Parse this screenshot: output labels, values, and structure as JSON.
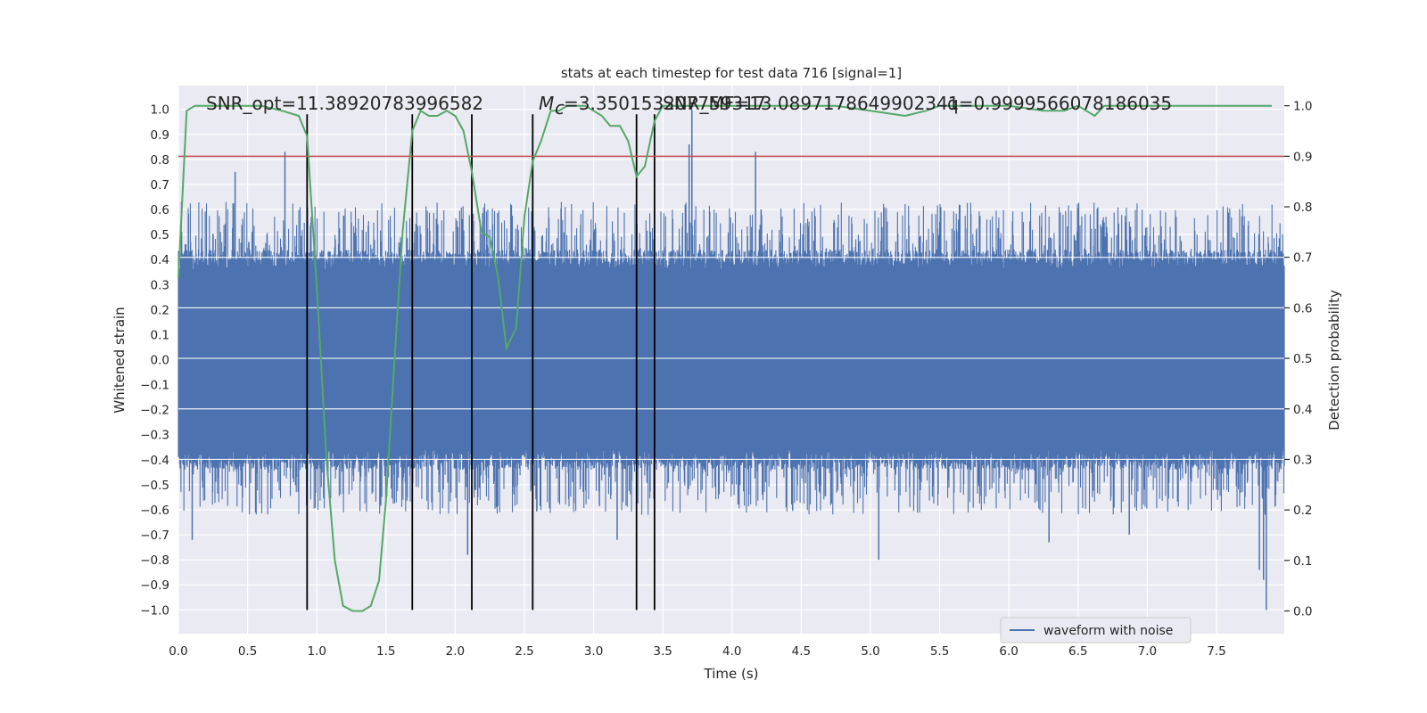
{
  "chart_data": {
    "type": "line",
    "title": "stats at each timestep for test data 716 [signal=1]",
    "xlabel": "Time (s)",
    "ylabel": "Whitened strain",
    "y2label": "Detection probability",
    "xlim": [
      0.0,
      7.99
    ],
    "ylim": [
      -1.095,
      1.095
    ],
    "y2lim": [
      -0.045,
      1.04
    ],
    "xticks": [
      "0.0",
      "0.5",
      "1.0",
      "1.5",
      "2.0",
      "2.5",
      "3.0",
      "3.5",
      "4.0",
      "4.5",
      "5.0",
      "5.5",
      "6.0",
      "6.5",
      "7.0",
      "7.5"
    ],
    "yticks": [
      "1.0",
      "0.9",
      "0.8",
      "0.7",
      "0.6",
      "0.5",
      "0.4",
      "0.3",
      "0.2",
      "0.1",
      "0.0",
      "-0.1",
      "-0.2",
      "-0.3",
      "-0.4",
      "-0.5",
      "-0.6",
      "-0.7",
      "-0.8",
      "-0.9",
      "-1.0"
    ],
    "y2ticks": [
      "1.0",
      "0.9",
      "0.8",
      "0.7",
      "0.6",
      "0.5",
      "0.4",
      "0.3",
      "0.2",
      "0.1",
      "0.0"
    ],
    "grid": true,
    "legend": {
      "position": "lower-right",
      "entries": [
        "waveform with noise"
      ]
    },
    "annotations": {
      "snr_opt": "SNR_opt=11.38920783996582",
      "mc": "=3.350153207759317",
      "mc_symbol": "M",
      "mc_sub": "c",
      "snr_mf": "SNR_MF=13.0897178649902341",
      "q": "q=0.9999566078186035"
    },
    "threshold": {
      "axis": "right",
      "value": 0.9,
      "color": "#c44e52"
    },
    "vlines": {
      "x": [
        0.93,
        1.69,
        2.12,
        2.56,
        3.31,
        3.44
      ],
      "ymin": -1.0,
      "ymax": 0.98,
      "color": "#000000"
    },
    "series": [
      {
        "name": "waveform with noise",
        "axis": "left",
        "color": "#4c72b0",
        "style": "noise",
        "envelope": {
          "typical": 0.36,
          "peak_max": 0.63,
          "trough_min": -0.62
        },
        "spikes": [
          [
            0.41,
            0.75
          ],
          [
            0.77,
            0.83
          ],
          [
            3.71,
            1.0
          ],
          [
            3.69,
            0.86
          ],
          [
            4.17,
            0.83
          ],
          [
            4.21,
            0.6
          ],
          [
            7.86,
            -1.0
          ],
          [
            7.81,
            -0.84
          ],
          [
            7.84,
            -0.88
          ],
          [
            2.09,
            -0.78
          ],
          [
            3.17,
            -0.72
          ],
          [
            0.1,
            -0.72
          ],
          [
            5.06,
            -0.8
          ],
          [
            6.29,
            -0.73
          ],
          [
            6.87,
            -0.7
          ]
        ]
      },
      {
        "name": "detection probability",
        "axis": "right",
        "color": "#55a868",
        "x": [
          0.0,
          0.06,
          0.12,
          0.2,
          0.4,
          0.6,
          0.75,
          0.87,
          0.93,
          1.0,
          1.07,
          1.13,
          1.19,
          1.26,
          1.33,
          1.39,
          1.45,
          1.5,
          1.56,
          1.62,
          1.69,
          1.75,
          1.81,
          1.87,
          1.94,
          2.0,
          2.06,
          2.12,
          2.19,
          2.25,
          2.31,
          2.37,
          2.44,
          2.5,
          2.56,
          2.62,
          2.69,
          2.75,
          2.81,
          2.87,
          2.94,
          3.0,
          3.06,
          3.12,
          3.19,
          3.25,
          3.31,
          3.37,
          3.44,
          3.5,
          3.56,
          3.62,
          3.69,
          3.75,
          3.81,
          3.87,
          4.0,
          4.25,
          4.5,
          4.75,
          5.0,
          5.25,
          5.4,
          5.5,
          5.75,
          6.0,
          6.25,
          6.4,
          6.5,
          6.62,
          6.69,
          6.75,
          6.87,
          7.0,
          7.25,
          7.5,
          7.75,
          7.9
        ],
        "values": [
          0.66,
          0.99,
          1.0,
          1.0,
          1.0,
          1.0,
          0.99,
          0.98,
          0.94,
          0.64,
          0.3,
          0.1,
          0.01,
          0.0,
          0.0,
          0.01,
          0.06,
          0.22,
          0.49,
          0.75,
          0.95,
          0.99,
          0.98,
          0.98,
          0.99,
          0.98,
          0.95,
          0.87,
          0.75,
          0.74,
          0.66,
          0.52,
          0.56,
          0.78,
          0.89,
          0.93,
          0.99,
          0.99,
          1.0,
          1.0,
          1.0,
          0.99,
          0.98,
          0.96,
          0.96,
          0.93,
          0.86,
          0.88,
          0.97,
          1.0,
          1.0,
          1.0,
          1.0,
          1.0,
          1.0,
          1.0,
          1.0,
          1.0,
          1.0,
          1.0,
          0.99,
          0.98,
          0.99,
          1.0,
          1.0,
          1.0,
          0.99,
          0.99,
          1.0,
          0.98,
          1.0,
          1.0,
          1.0,
          1.0,
          1.0,
          1.0,
          1.0,
          1.0
        ]
      }
    ]
  },
  "colors": {
    "plot_background": "#eaeaf2",
    "grid": "#ffffff",
    "waveform": "#4c72b0",
    "probability": "#55a868",
    "threshold": "#c44e52",
    "vline": "#000000"
  }
}
